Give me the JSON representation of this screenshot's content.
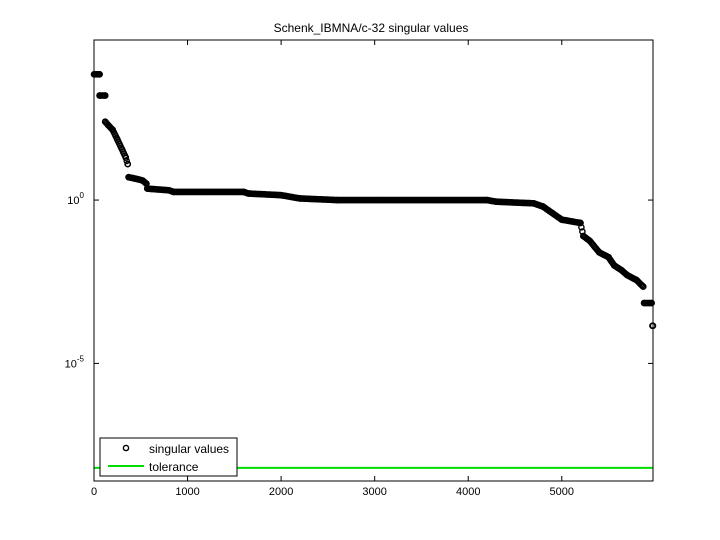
{
  "chart_data": {
    "type": "scatter",
    "title": "Schenk_IBMNA/c-32 singular values",
    "xlabel": "",
    "ylabel": "",
    "xlim": [
      0,
      5975
    ],
    "ylim_log10": [
      -8.6,
      4.9
    ],
    "y_scale": "log",
    "grid": false,
    "legend_position": "bottom-left",
    "x_ticks": [
      0,
      1000,
      2000,
      3000,
      4000,
      5000
    ],
    "x_tick_labels": [
      "0",
      "1000",
      "2000",
      "3000",
      "4000",
      "5000"
    ],
    "y_ticks": [
      {
        "base": "10",
        "exp": "0"
      },
      {
        "base": "10",
        "exp": "-5"
      }
    ],
    "series": [
      {
        "name": "singular values",
        "marker": "circle",
        "color": "#000000",
        "points_log10": [
          [
            0,
            3.85
          ],
          [
            60,
            3.85
          ],
          [
            60,
            3.2
          ],
          [
            120,
            3.2
          ],
          [
            120,
            2.4
          ],
          [
            150,
            2.3
          ],
          [
            200,
            2.15
          ],
          [
            250,
            1.85
          ],
          [
            300,
            1.55
          ],
          [
            340,
            1.3
          ],
          [
            360,
            1.1
          ],
          [
            370,
            0.7
          ],
          [
            450,
            0.65
          ],
          [
            520,
            0.6
          ],
          [
            560,
            0.5
          ],
          [
            570,
            0.35
          ],
          [
            800,
            0.3
          ],
          [
            850,
            0.25
          ],
          [
            1600,
            0.25
          ],
          [
            1650,
            0.2
          ],
          [
            2000,
            0.15
          ],
          [
            2200,
            0.05
          ],
          [
            2600,
            0.0
          ],
          [
            4200,
            0.0
          ],
          [
            4300,
            -0.05
          ],
          [
            4700,
            -0.1
          ],
          [
            4800,
            -0.2
          ],
          [
            4900,
            -0.4
          ],
          [
            5000,
            -0.6
          ],
          [
            5200,
            -0.7
          ],
          [
            5230,
            -1.1
          ],
          [
            5300,
            -1.25
          ],
          [
            5400,
            -1.6
          ],
          [
            5500,
            -1.75
          ],
          [
            5560,
            -2.0
          ],
          [
            5640,
            -2.15
          ],
          [
            5700,
            -2.3
          ],
          [
            5800,
            -2.45
          ],
          [
            5870,
            -2.65
          ],
          [
            5880,
            -3.15
          ],
          [
            5960,
            -3.15
          ],
          [
            5970,
            -3.85
          ],
          [
            5975,
            -3.85
          ]
        ]
      },
      {
        "name": "tolerance",
        "marker": "line",
        "color": "#00dd00",
        "value_log10": -8.2
      }
    ]
  }
}
